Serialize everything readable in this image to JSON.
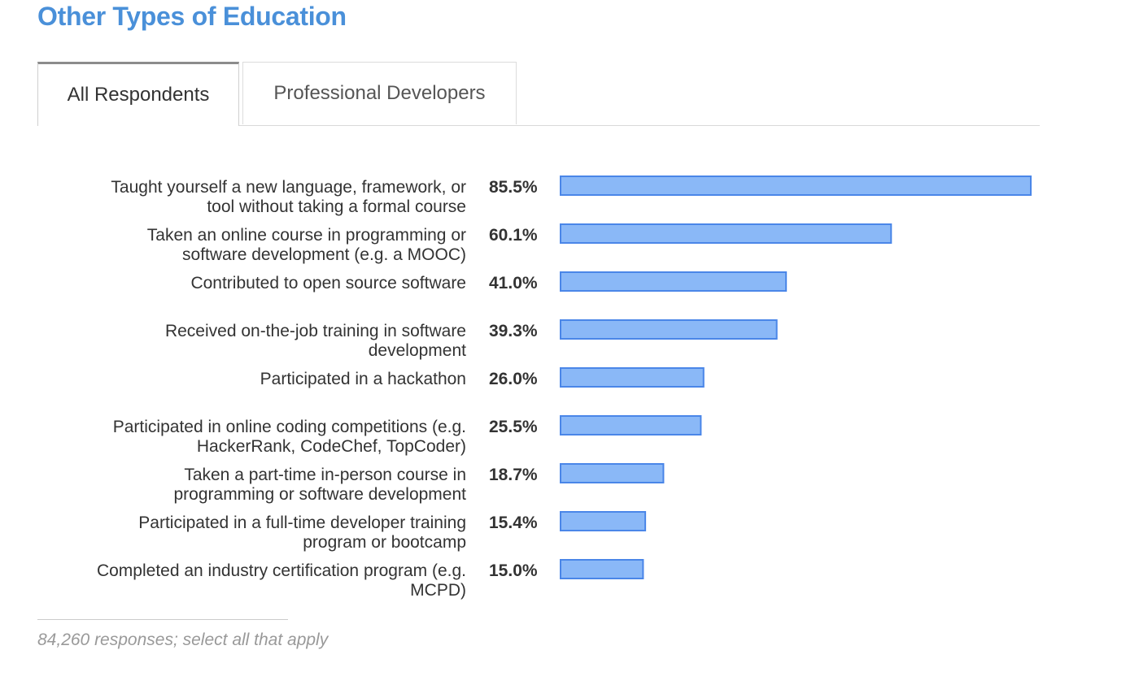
{
  "page": {
    "title": "Other Types of Education",
    "footnote": "84,260 responses; select all that apply"
  },
  "tabs": [
    {
      "label": "All Respondents",
      "active": true
    },
    {
      "label": "Professional Developers",
      "active": false
    }
  ],
  "colors": {
    "bar_fill": "#8ab8f7",
    "bar_stroke": "#4a86e8",
    "title": "#4a90d9"
  },
  "chart_data": {
    "type": "bar",
    "orientation": "horizontal",
    "title": "",
    "xlabel": "",
    "ylabel": "",
    "unit": "%",
    "xlim": [
      0,
      85.5
    ],
    "grid": false,
    "legend": "none",
    "categories": [
      [
        "Taught yourself a new language, framework, or",
        "tool without taking a formal course"
      ],
      [
        "Taken an online course in programming or",
        "software development (e.g. a MOOC)"
      ],
      [
        "Contributed to open source software"
      ],
      [
        "Received on-the-job training in software",
        "development"
      ],
      [
        "Participated in a hackathon"
      ],
      [
        "Participated in online coding competitions (e.g.",
        "HackerRank, CodeChef, TopCoder)"
      ],
      [
        "Taken a part-time in-person course in",
        "programming or software development"
      ],
      [
        "Participated in a full-time developer training",
        "program or bootcamp"
      ],
      [
        "Completed an industry certification program (e.g.",
        "MCPD)"
      ]
    ],
    "values": [
      85.5,
      60.1,
      41.0,
      39.3,
      26.0,
      25.5,
      18.7,
      15.4,
      15.0
    ],
    "value_labels": [
      "85.5%",
      "60.1%",
      "41.0%",
      "39.3%",
      "26.0%",
      "25.5%",
      "18.7%",
      "15.4%",
      "15.0%"
    ]
  }
}
